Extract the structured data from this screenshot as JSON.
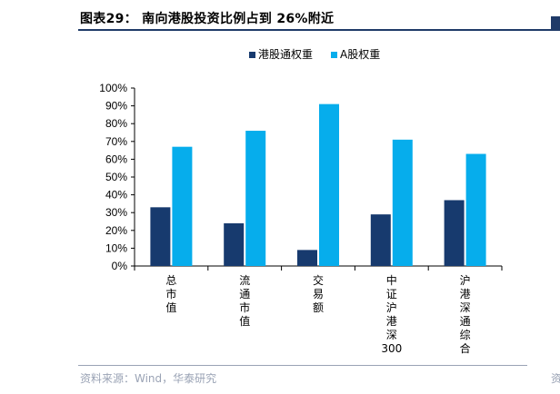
{
  "header": {
    "title": "图表29：  南向港股投资比例占到 26%附近",
    "source": "资料来源：Wind，华泰研究",
    "right_stub": "资"
  },
  "colors": {
    "series1": "#173a6e",
    "series2": "#06adec",
    "rule": "#1f3a68"
  },
  "chart_data": {
    "type": "bar",
    "categories": [
      "总市值",
      "流通市值",
      "交易额",
      "中证沪港深300",
      "沪港深通综合"
    ],
    "series": [
      {
        "name": "港股通权重",
        "values": [
          0.33,
          0.24,
          0.09,
          0.29,
          0.37
        ]
      },
      {
        "name": "A股权重",
        "values": [
          0.67,
          0.76,
          0.91,
          0.71,
          0.63
        ]
      }
    ],
    "y_ticks": [
      "0%",
      "10%",
      "20%",
      "30%",
      "40%",
      "50%",
      "60%",
      "70%",
      "80%",
      "90%",
      "100%"
    ],
    "ylim": [
      0,
      1
    ],
    "legend_position": "top-left",
    "grid": false
  }
}
